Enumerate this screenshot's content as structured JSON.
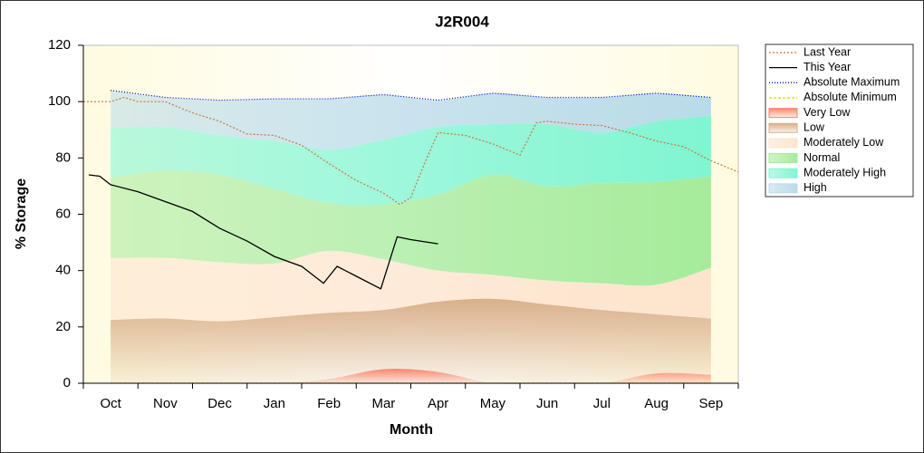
{
  "chart_data": {
    "type": "line",
    "title": "J2R004",
    "x_label": "Month",
    "y_label": "% Storage",
    "categories": [
      "Oct",
      "Nov",
      "Dec",
      "Jan",
      "Feb",
      "Mar",
      "Apr",
      "May",
      "Jun",
      "Jul",
      "Aug",
      "Sep"
    ],
    "xlim": [
      0,
      12
    ],
    "xticks": [
      0,
      1,
      2,
      3,
      4,
      5,
      6,
      7,
      8,
      9,
      10,
      11,
      12
    ],
    "ylim": [
      0,
      120
    ],
    "yticks": [
      0,
      20,
      40,
      60,
      80,
      100,
      120
    ],
    "series": [
      {
        "name": "Last Year",
        "color": "#c8783a",
        "dash": "2,2",
        "x": [
          0,
          0.5,
          0.75,
          1,
          1.5,
          2,
          2.5,
          3,
          3.5,
          4,
          4.5,
          5,
          5.5,
          5.8,
          6,
          6.25,
          6.5,
          7,
          7.5,
          8,
          8.3,
          8.5,
          9,
          9.5,
          10,
          10.5,
          11,
          11.5,
          12
        ],
        "values": [
          100,
          100,
          101.5,
          100,
          100,
          96,
          93,
          88.5,
          88,
          84.5,
          78,
          72,
          67.5,
          63.5,
          66,
          78,
          89,
          88,
          85,
          81,
          92.5,
          93,
          92,
          91.5,
          89,
          86,
          84,
          79,
          75
        ]
      },
      {
        "name": "This Year",
        "color": "#000000",
        "dash": "none",
        "x": [
          0.1,
          0.3,
          0.5,
          1,
          1.5,
          2,
          2.5,
          3,
          3.5,
          4,
          4.4,
          4.65,
          5,
          5.45,
          5.75,
          6,
          6.5
        ],
        "values": [
          74,
          73.5,
          70.5,
          68,
          64.5,
          61,
          55,
          50.5,
          45,
          41.5,
          35.5,
          41.5,
          38,
          33.5,
          52,
          51,
          49.5
        ]
      },
      {
        "name": "Absolute Maximum",
        "color": "#0000cc",
        "dash": "1,2",
        "values": [
          104,
          101.5,
          100.5,
          101,
          101,
          102.5,
          100.5,
          103,
          101.5,
          101.5,
          103,
          101.5
        ]
      },
      {
        "name": "Absolute Minimum",
        "color": "#e0d800",
        "dash": "3,2",
        "values": [
          0,
          0,
          0,
          0,
          0,
          0,
          0,
          0,
          0,
          0,
          0,
          0
        ]
      },
      {
        "name": "Very Low",
        "color": "#f7876b",
        "area": true,
        "values": [
          0,
          0,
          0,
          0,
          1.5,
          5,
          4,
          0,
          0,
          0,
          3.5,
          3
        ]
      },
      {
        "name": "Low",
        "color": "#d9b08a",
        "area": true,
        "values": [
          22.5,
          23,
          22,
          23.5,
          23.5,
          21,
          25,
          30,
          28,
          26,
          21,
          20
        ]
      },
      {
        "name": "Moderately Low",
        "color": "#fde4cd",
        "area": true,
        "values": [
          22,
          21.5,
          21,
          19,
          22,
          18,
          11,
          8.5,
          8.5,
          9.5,
          10.5,
          18
        ]
      },
      {
        "name": "Normal",
        "color": "#a6eb9c",
        "area": true,
        "values": [
          28.5,
          31,
          31,
          26.5,
          17,
          19.5,
          27,
          35.5,
          33.5,
          35.5,
          36.5,
          32.5
        ]
      },
      {
        "name": "Moderately High",
        "color": "#80f5d2",
        "area": true,
        "values": [
          17.5,
          15.5,
          14,
          17,
          19,
          23,
          24,
          18,
          22,
          18,
          21.5,
          21.5
        ]
      },
      {
        "name": "High",
        "color": "#b9dbe9",
        "area": true,
        "values": [
          13.5,
          10.5,
          12.5,
          15,
          18,
          16,
          9.5,
          11,
          9.5,
          12.5,
          10,
          6.5
        ]
      }
    ]
  }
}
